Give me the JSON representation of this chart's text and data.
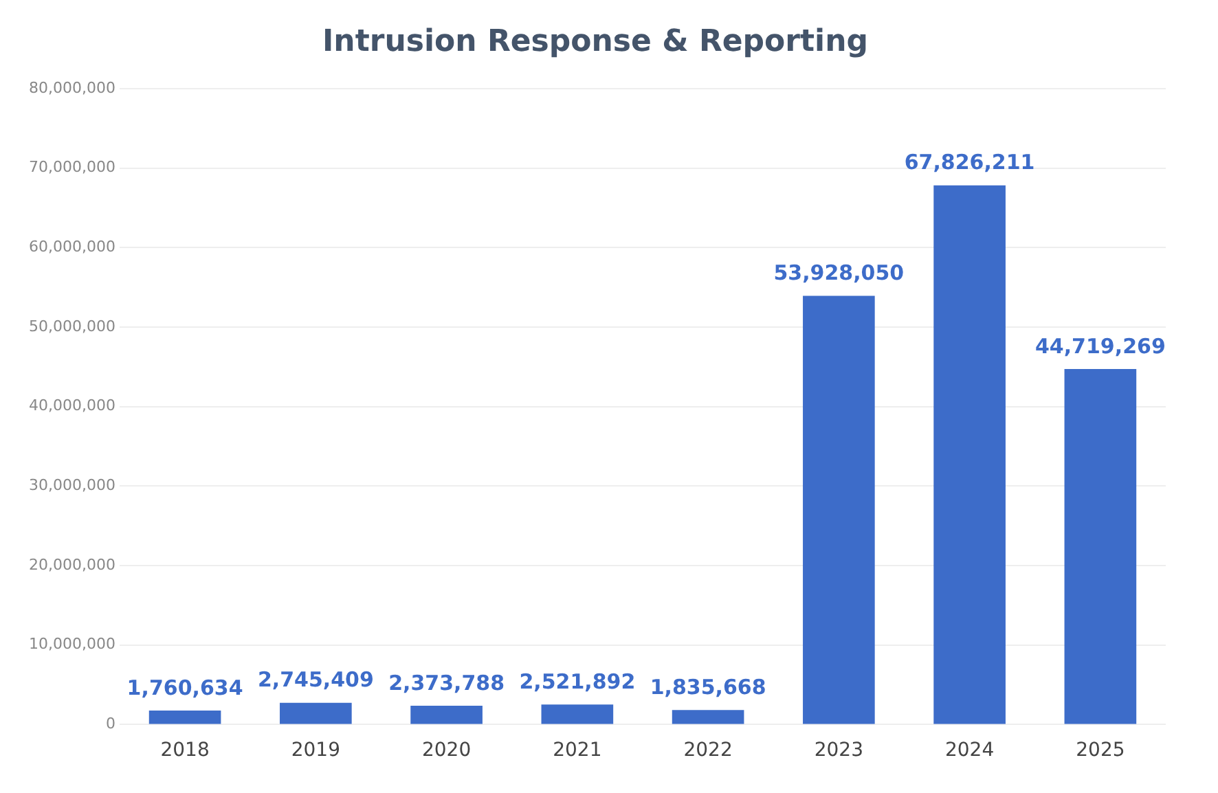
{
  "chart_data": {
    "type": "bar",
    "title": "Intrusion Response & Reporting",
    "categories": [
      "2018",
      "2019",
      "2020",
      "2021",
      "2022",
      "2023",
      "2024",
      "2025"
    ],
    "values": [
      1760634,
      2745409,
      2373788,
      2521892,
      1835668,
      53928050,
      67826211,
      44719269
    ],
    "value_labels": [
      "1,760,634",
      "2,745,409",
      "2,373,788",
      "2,521,892",
      "1,835,668",
      "53,928,050",
      "67,826,211",
      "44,719,269"
    ],
    "color": "#3d6cc9",
    "ylim": [
      0,
      80000000
    ],
    "yticks": [
      0,
      {
        "value": 10000000,
        "label": "10,000,000"
      },
      {
        "value": 20000000,
        "label": "20,000,000"
      },
      {
        "value": 30000000,
        "label": "30,000,000"
      },
      {
        "value": 40000000,
        "label": "40,000,000"
      },
      {
        "value": 50000000,
        "label": "50,000,000"
      },
      {
        "value": 60000000,
        "label": "60,000,000"
      },
      {
        "value": 70000000,
        "label": "70,000,000"
      },
      {
        "value": 80000000,
        "label": "80,000,000"
      }
    ],
    "grid": "y",
    "legend": false
  }
}
